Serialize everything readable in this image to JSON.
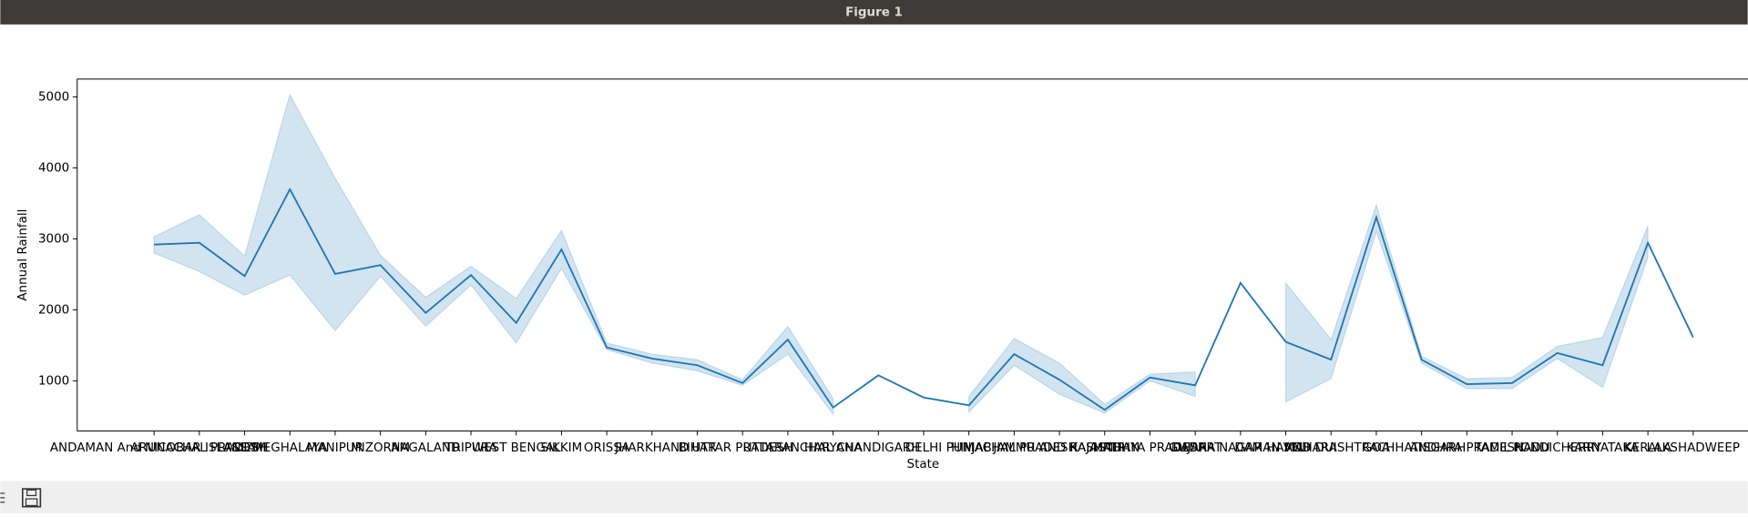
{
  "window_title": "Figure 1",
  "chart_data": {
    "type": "line",
    "x_label": "State",
    "y_label": "Annual Rainfall",
    "categories": [
      "ANDAMAN And NICOBAR ISLANDS",
      "ARUNACHAL PRADESH",
      "ASSAM",
      "MEGHALAYA",
      "MANIPUR",
      "MIZORAM",
      "NAGALAND",
      "TRIPURA",
      "WEST BENGAL",
      "SIKKIM",
      "ORISSA",
      "JHARKHAND",
      "BIHAR",
      "UTTAR PRADESH",
      "UTTARANCHAL",
      "HARYANA",
      "CHANDIGARH",
      "DELHI",
      "PUNJAB",
      "HIMACHAL PRADESH",
      "JAMMU AND KASHMIR",
      "RAJASTHAN",
      "MADHYA PRADESH",
      "GUJARAT",
      "DADAR NAGAR HAVELI",
      "DAMAN AND DUI",
      "MAHARASHTRA",
      "GOA",
      "CHHATISGARH",
      "ANDHRA PRADESH",
      "TAMIL NADU",
      "PONDICHERRY",
      "KARNATAKA",
      "KERALA",
      "LAKSHADWEEP"
    ],
    "color": "#1f77b4",
    "band_color": "#1f77b4",
    "values": [
      2920,
      2945,
      2475,
      3698,
      2506,
      2630,
      1957,
      2490,
      1816,
      2851,
      1470,
      1314,
      1220,
      969,
      1580,
      624,
      1078,
      765,
      655,
      1376,
      1016,
      592,
      1047,
      937,
      2380,
      1549,
      1298,
      3306,
      1298,
      953,
      969,
      1392,
      1220,
      2945,
      1612
    ],
    "ci_low": [
      2800,
      2540,
      2208,
      2490,
      1706,
      2475,
      1770,
      2350,
      1533,
      2584,
      1440,
      1250,
      1141,
      937,
      1376,
      530,
      null,
      null,
      560,
      1220,
      812,
      545,
      1000,
      780,
      null,
      702,
      1031,
      3102,
      1250,
      890,
      890,
      1314,
      906,
      2741,
      null
    ],
    "ci_high": [
      3030,
      3340,
      2757,
      5030,
      3855,
      2770,
      2176,
      2615,
      2160,
      3118,
      1533,
      1376,
      1298,
      1016,
      1768,
      750,
      null,
      null,
      780,
      1596,
      1250,
      670,
      1094,
      1125,
      null,
      2380,
      1580,
      3478,
      1345,
      1031,
      1047,
      1486,
      1612,
      3180,
      null
    ],
    "ylim": [
      294,
      5251
    ],
    "yticks": [
      1000,
      2000,
      3000,
      4000,
      5000
    ]
  }
}
